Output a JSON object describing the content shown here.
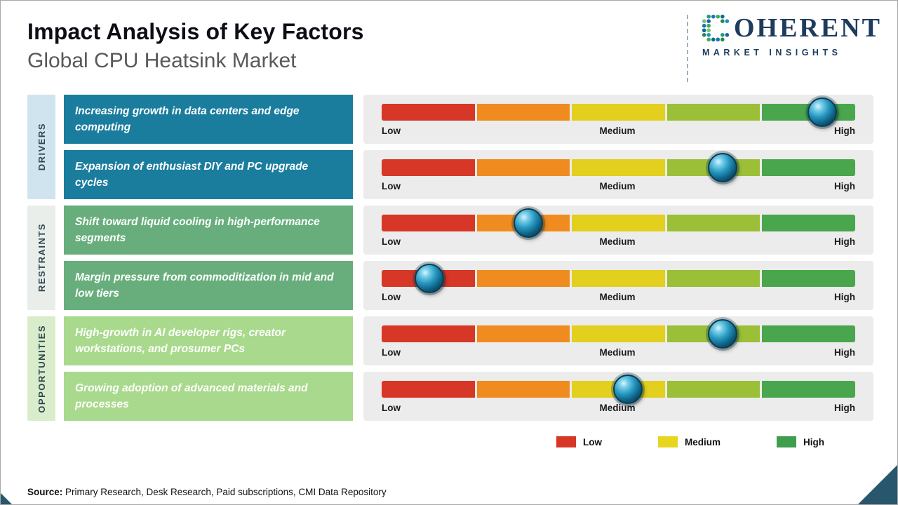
{
  "page": {
    "title": "Impact Analysis of Key Factors",
    "subtitle": "Global CPU Heatsink Market",
    "source_label": "Source:",
    "source_text": " Primary Research, Desk Research, Paid subscriptions, CMI Data Repository"
  },
  "logo": {
    "wordmark_rest": "OHERENT",
    "tagline": "MARKET INSIGHTS"
  },
  "legend": [
    {
      "label": "Low",
      "color": "#d63726"
    },
    {
      "label": "Medium",
      "color": "#e8d51e"
    },
    {
      "label": "High",
      "color": "#3f9e4d"
    }
  ],
  "categories": [
    {
      "label": "DRIVERS",
      "strip_color": "#cfe4ef",
      "box_color": "#1a7d9e"
    },
    {
      "label": "RESTRAINTS",
      "strip_color": "#e9eeea",
      "box_color": "#68ae7c"
    },
    {
      "label": "OPPORTUNITIES",
      "strip_color": "#d9edcc",
      "box_color": "#a9d98c"
    }
  ],
  "chart_data": {
    "type": "bar",
    "title": "Impact Analysis of Key Factors",
    "subtitle": "Global CPU Heatsink Market",
    "scale": {
      "min": "Low",
      "mid": "Medium",
      "max": "High",
      "range": [
        0,
        1
      ]
    },
    "segment_colors": [
      "#d63726",
      "#f08b1f",
      "#e2cf1e",
      "#9bbf37",
      "#4aa64c"
    ],
    "legend": [
      "Low",
      "Medium",
      "High"
    ],
    "groups": [
      {
        "category": "DRIVERS",
        "factors": [
          {
            "label": "Increasing growth in data centers and edge computing",
            "impact_position": 0.93,
            "impact_level": "High"
          },
          {
            "label": "Expansion of enthusiast DIY and PC upgrade cycles",
            "impact_position": 0.72,
            "impact_level": "Medium-High"
          }
        ]
      },
      {
        "category": "RESTRAINTS",
        "factors": [
          {
            "label": "Shift toward liquid cooling in high-performance segments",
            "impact_position": 0.31,
            "impact_level": "Low-Medium"
          },
          {
            "label": "Margin pressure from commoditization in mid and low tiers",
            "impact_position": 0.1,
            "impact_level": "Low"
          }
        ]
      },
      {
        "category": "OPPORTUNITIES",
        "factors": [
          {
            "label": "High-growth in AI developer rigs, creator workstations, and prosumer PCs",
            "impact_position": 0.72,
            "impact_level": "Medium-High"
          },
          {
            "label": "Growing adoption of advanced materials and processes",
            "impact_position": 0.52,
            "impact_level": "Medium"
          }
        ]
      }
    ]
  }
}
